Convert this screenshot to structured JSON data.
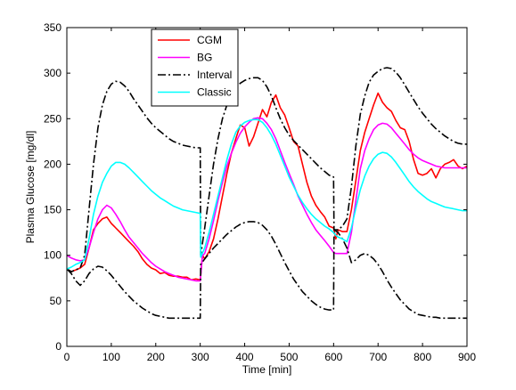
{
  "chart_data": {
    "type": "line",
    "title": "",
    "xlabel": "Time [min]",
    "ylabel": "Plasma Glucose [mg/dl]",
    "xlim": [
      0,
      900
    ],
    "ylim": [
      0,
      350
    ],
    "xticks": [
      0,
      100,
      200,
      300,
      400,
      500,
      600,
      700,
      800,
      900
    ],
    "yticks": [
      0,
      50,
      100,
      150,
      200,
      250,
      300,
      350
    ],
    "grid": false,
    "legend_position": "top-left",
    "series": [
      {
        "name": "CGM",
        "color": "#ff0000",
        "style": "solid",
        "x": [
          0,
          10,
          20,
          30,
          40,
          50,
          60,
          70,
          80,
          90,
          100,
          110,
          120,
          130,
          140,
          150,
          160,
          170,
          180,
          190,
          200,
          210,
          220,
          230,
          240,
          250,
          260,
          270,
          280,
          290,
          300,
          305,
          310,
          320,
          330,
          340,
          350,
          360,
          370,
          380,
          390,
          400,
          410,
          420,
          430,
          440,
          450,
          460,
          470,
          480,
          490,
          500,
          510,
          520,
          530,
          540,
          550,
          560,
          570,
          580,
          590,
          600,
          605,
          610,
          620,
          630,
          640,
          650,
          660,
          670,
          680,
          690,
          700,
          710,
          720,
          730,
          740,
          750,
          760,
          770,
          780,
          790,
          800,
          810,
          820,
          830,
          840,
          850,
          860,
          870,
          880,
          890,
          900
        ],
        "values": [
          85,
          82,
          84,
          86,
          90,
          108,
          128,
          135,
          140,
          142,
          135,
          130,
          125,
          120,
          115,
          110,
          104,
          96,
          90,
          86,
          84,
          80,
          81,
          78,
          77,
          77,
          76,
          76,
          73,
          74,
          73,
          100,
          96,
          104,
          118,
          140,
          165,
          190,
          212,
          228,
          243,
          240,
          220,
          230,
          245,
          260,
          252,
          268,
          276,
          262,
          254,
          240,
          225,
          220,
          200,
          180,
          165,
          155,
          148,
          142,
          132,
          130,
          118,
          128,
          126,
          126,
          150,
          182,
          215,
          235,
          250,
          265,
          278,
          268,
          262,
          258,
          248,
          240,
          238,
          225,
          205,
          190,
          188,
          190,
          195,
          185,
          195,
          200,
          202,
          205,
          198,
          195,
          198
        ]
      },
      {
        "name": "BG",
        "color": "#ff00ff",
        "style": "solid",
        "x": [
          0,
          10,
          20,
          30,
          40,
          50,
          60,
          70,
          80,
          90,
          100,
          110,
          120,
          130,
          140,
          150,
          160,
          170,
          180,
          190,
          200,
          210,
          220,
          230,
          240,
          250,
          260,
          270,
          280,
          290,
          300,
          305,
          310,
          320,
          330,
          340,
          350,
          360,
          370,
          380,
          390,
          400,
          410,
          420,
          430,
          440,
          450,
          460,
          470,
          480,
          490,
          500,
          510,
          520,
          530,
          540,
          550,
          560,
          570,
          580,
          590,
          600,
          605,
          610,
          620,
          630,
          640,
          650,
          660,
          670,
          680,
          690,
          700,
          710,
          720,
          730,
          740,
          750,
          760,
          770,
          780,
          790,
          800,
          810,
          820,
          830,
          840,
          850,
          860,
          870,
          880,
          890,
          900
        ],
        "values": [
          100,
          97,
          95,
          94,
          95,
          108,
          125,
          140,
          150,
          155,
          152,
          145,
          137,
          128,
          120,
          114,
          108,
          102,
          97,
          92,
          88,
          85,
          82,
          80,
          78,
          76,
          75,
          74,
          73,
          72,
          72,
          100,
          102,
          118,
          138,
          160,
          180,
          198,
          212,
          224,
          234,
          241,
          246,
          250,
          251,
          250,
          245,
          238,
          228,
          215,
          202,
          190,
          178,
          165,
          155,
          145,
          136,
          128,
          122,
          116,
          110,
          103,
          102,
          102,
          102,
          102,
          125,
          160,
          195,
          215,
          228,
          238,
          243,
          245,
          244,
          240,
          234,
          228,
          222,
          216,
          211,
          207,
          204,
          202,
          200,
          198,
          197,
          196,
          196,
          196,
          196,
          196,
          196
        ]
      },
      {
        "name": "Interval (upper)",
        "legend_label": "Interval",
        "color": "#000000",
        "style": "dashdot",
        "x": [
          0,
          10,
          20,
          30,
          40,
          50,
          60,
          70,
          80,
          90,
          100,
          110,
          120,
          130,
          140,
          150,
          160,
          170,
          180,
          190,
          200,
          210,
          220,
          230,
          240,
          250,
          260,
          270,
          280,
          290,
          300,
          301,
          310,
          320,
          330,
          340,
          350,
          360,
          370,
          380,
          390,
          400,
          410,
          420,
          430,
          440,
          450,
          460,
          470,
          480,
          490,
          500,
          510,
          520,
          530,
          540,
          550,
          560,
          570,
          580,
          590,
          600,
          601,
          610,
          620,
          630,
          640,
          650,
          660,
          670,
          680,
          690,
          700,
          710,
          720,
          730,
          740,
          750,
          760,
          770,
          780,
          790,
          800,
          810,
          820,
          830,
          840,
          850,
          860,
          870,
          880,
          890,
          900
        ],
        "values": [
          85,
          82,
          84,
          86,
          100,
          150,
          200,
          240,
          265,
          280,
          288,
          291,
          290,
          286,
          280,
          272,
          265,
          258,
          251,
          245,
          240,
          236,
          232,
          228,
          225,
          223,
          221,
          220,
          219,
          218,
          218,
          100,
          130,
          165,
          200,
          228,
          250,
          265,
          276,
          284,
          289,
          292,
          294,
          295,
          295,
          292,
          285,
          275,
          262,
          250,
          240,
          232,
          226,
          221,
          216,
          211,
          206,
          201,
          196,
          192,
          188,
          186,
          128,
          128,
          132,
          140,
          175,
          220,
          255,
          275,
          290,
          298,
          302,
          305,
          306,
          305,
          301,
          295,
          287,
          279,
          271,
          263,
          256,
          250,
          244,
          239,
          235,
          231,
          228,
          225,
          223,
          222,
          222
        ]
      },
      {
        "name": "Interval (lower)",
        "legend_label": "Interval",
        "color": "#000000",
        "style": "dashdot",
        "x": [
          0,
          10,
          20,
          30,
          40,
          50,
          60,
          70,
          80,
          90,
          100,
          110,
          120,
          130,
          140,
          150,
          160,
          170,
          180,
          190,
          200,
          210,
          220,
          230,
          240,
          250,
          260,
          270,
          280,
          290,
          300,
          301,
          310,
          320,
          330,
          340,
          350,
          360,
          370,
          380,
          390,
          400,
          410,
          420,
          430,
          440,
          450,
          460,
          470,
          480,
          490,
          500,
          510,
          520,
          530,
          540,
          550,
          560,
          570,
          580,
          590,
          600,
          601,
          610,
          620,
          630,
          640,
          650,
          660,
          670,
          680,
          690,
          700,
          710,
          720,
          730,
          740,
          750,
          760,
          770,
          780,
          790,
          800,
          810,
          820,
          830,
          840,
          850,
          860,
          870,
          880,
          890,
          900
        ],
        "values": [
          85,
          80,
          72,
          67,
          72,
          80,
          85,
          88,
          87,
          83,
          78,
          72,
          66,
          60,
          55,
          50,
          46,
          42,
          39,
          36,
          34,
          33,
          32,
          31,
          31,
          31,
          31,
          31,
          31,
          31,
          31,
          90,
          96,
          102,
          108,
          113,
          118,
          123,
          127,
          131,
          134,
          136,
          137,
          137,
          136,
          133,
          128,
          121,
          112,
          102,
          92,
          83,
          74,
          67,
          60,
          55,
          50,
          46,
          43,
          41,
          40,
          40,
          128,
          125,
          118,
          108,
          92,
          95,
          100,
          102,
          100,
          96,
          90,
          82,
          73,
          65,
          58,
          51,
          46,
          41,
          38,
          35,
          34,
          33,
          32,
          32,
          31,
          31,
          31,
          31,
          31,
          31,
          31
        ]
      },
      {
        "name": "Classic",
        "color": "#00ffff",
        "style": "solid",
        "x": [
          0,
          10,
          20,
          30,
          40,
          50,
          60,
          70,
          80,
          90,
          100,
          110,
          120,
          130,
          140,
          150,
          160,
          170,
          180,
          190,
          200,
          210,
          220,
          230,
          240,
          250,
          260,
          270,
          280,
          290,
          300,
          301,
          310,
          320,
          330,
          340,
          350,
          360,
          370,
          380,
          390,
          400,
          410,
          420,
          430,
          440,
          450,
          460,
          470,
          480,
          490,
          500,
          510,
          520,
          530,
          540,
          550,
          560,
          570,
          580,
          590,
          600,
          605,
          610,
          620,
          630,
          640,
          650,
          660,
          670,
          680,
          690,
          700,
          710,
          720,
          730,
          740,
          750,
          760,
          770,
          780,
          790,
          800,
          810,
          820,
          830,
          840,
          850,
          860,
          870,
          880,
          890,
          900
        ],
        "values": [
          85,
          87,
          90,
          92,
          95,
          118,
          145,
          165,
          180,
          190,
          198,
          202,
          202,
          200,
          196,
          191,
          186,
          181,
          176,
          171,
          167,
          163,
          160,
          157,
          154,
          152,
          150,
          149,
          148,
          147,
          146,
          98,
          108,
          125,
          145,
          165,
          185,
          205,
          222,
          235,
          242,
          246,
          248,
          249,
          249,
          246,
          240,
          232,
          222,
          210,
          198,
          186,
          176,
          166,
          158,
          151,
          145,
          140,
          136,
          132,
          129,
          125,
          122,
          120,
          118,
          115,
          130,
          152,
          172,
          187,
          198,
          206,
          211,
          213,
          212,
          208,
          202,
          195,
          188,
          181,
          175,
          170,
          166,
          162,
          159,
          157,
          155,
          153,
          152,
          151,
          150,
          149,
          149
        ]
      }
    ],
    "legend": [
      {
        "label": "CGM",
        "color": "#ff0000",
        "style": "solid"
      },
      {
        "label": "BG",
        "color": "#ff00ff",
        "style": "solid"
      },
      {
        "label": "Interval",
        "color": "#000000",
        "style": "dashdot"
      },
      {
        "label": "Classic",
        "color": "#00ffff",
        "style": "solid"
      }
    ]
  }
}
